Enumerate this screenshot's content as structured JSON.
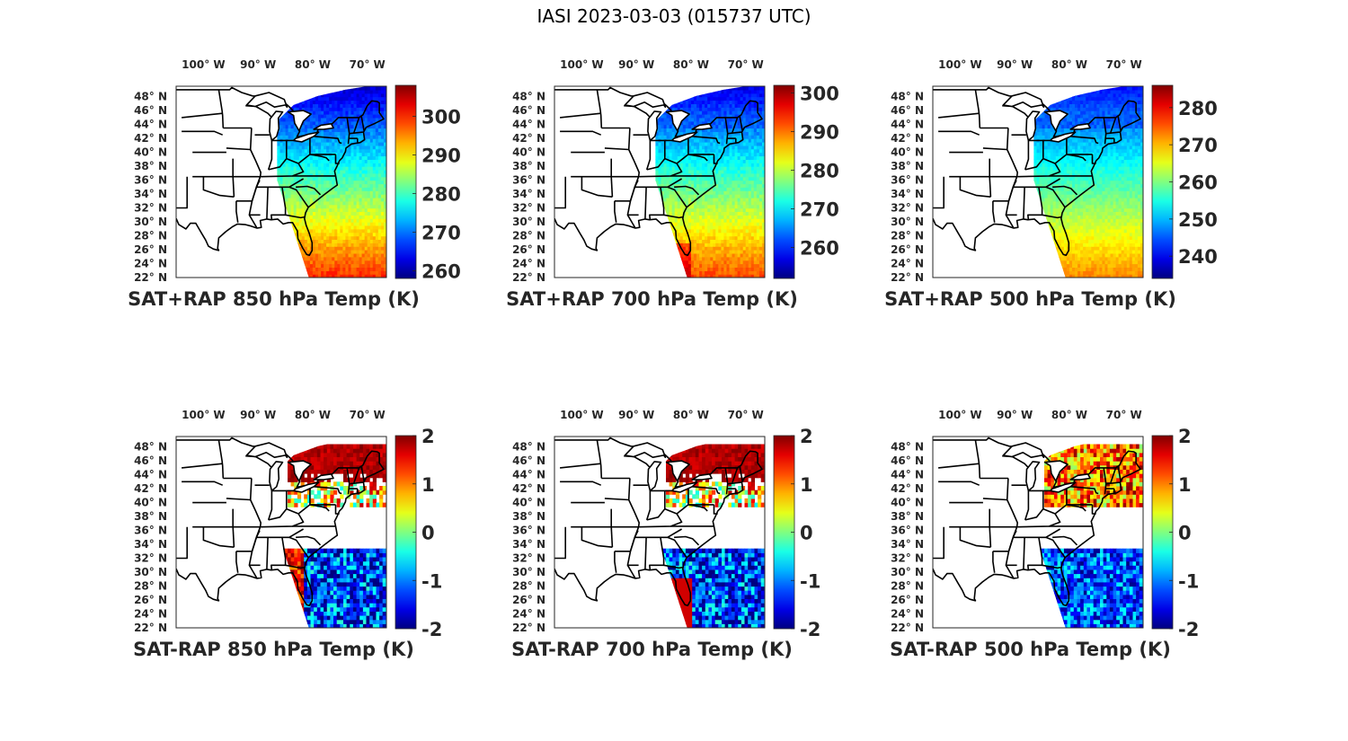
{
  "figure": {
    "title": "IASI 2023-03-03 (015737 UTC)"
  },
  "map_axes": {
    "lon_labels": [
      "100° W",
      "90° W",
      "80° W",
      "70° W"
    ],
    "lon_values": [
      -100,
      -90,
      -80,
      -70
    ],
    "lat_labels": [
      "48° N",
      "46° N",
      "44° N",
      "42° N",
      "40° N",
      "38° N",
      "36° N",
      "34° N",
      "32° N",
      "30° N",
      "28° N",
      "26° N",
      "24° N",
      "22° N"
    ],
    "lat_values": [
      48,
      46,
      44,
      42,
      40,
      38,
      36,
      34,
      32,
      30,
      28,
      26,
      24,
      22
    ],
    "lon_range": [
      -105,
      -66.5
    ],
    "lat_range": [
      22,
      49.5
    ]
  },
  "colormap": "jet",
  "panels": [
    {
      "id": "sat-rap-plus-850",
      "title": "SAT+RAP 850 hPa Temp (K)",
      "colorbar": {
        "ticks": [
          260,
          270,
          280,
          290,
          300
        ],
        "range": [
          258,
          308
        ]
      },
      "field": "satellite swath temperature, cold in northeast, warm in southeast"
    },
    {
      "id": "sat-rap-plus-700",
      "title": "SAT+RAP 700 hPa Temp (K)",
      "colorbar": {
        "ticks": [
          260,
          270,
          280,
          290,
          300
        ],
        "range": [
          252,
          302
        ]
      },
      "field": "satellite swath temperature, cold in northeast, warm in southeast"
    },
    {
      "id": "sat-rap-plus-500",
      "title": "SAT+RAP 500 hPa Temp (K)",
      "colorbar": {
        "ticks": [
          240,
          250,
          260,
          270,
          280
        ],
        "range": [
          234,
          286
        ]
      },
      "field": "satellite swath temperature, cold in northeast, warmer in southeast"
    },
    {
      "id": "sat-minus-rap-850",
      "title": "SAT-RAP 850 hPa Temp (K)",
      "colorbar": {
        "ticks": [
          -2,
          -1,
          0,
          1,
          2
        ],
        "range": [
          -2,
          2
        ]
      },
      "field": "difference, positive in Great Lakes region, mixed/negative in Florida"
    },
    {
      "id": "sat-minus-rap-700",
      "title": "SAT-RAP 700 hPa Temp (K)",
      "colorbar": {
        "ticks": [
          -2,
          -1,
          0,
          1,
          2
        ],
        "range": [
          -2,
          2
        ]
      },
      "field": "difference, positive in Great Lakes region, negative in Florida"
    },
    {
      "id": "sat-minus-rap-500",
      "title": "SAT-RAP 500 hPa Temp (K)",
      "colorbar": {
        "ticks": [
          -2,
          -1,
          0,
          1,
          2
        ],
        "range": [
          -2,
          2
        ]
      },
      "field": "difference, positive in northeast, negative in Florida"
    }
  ]
}
